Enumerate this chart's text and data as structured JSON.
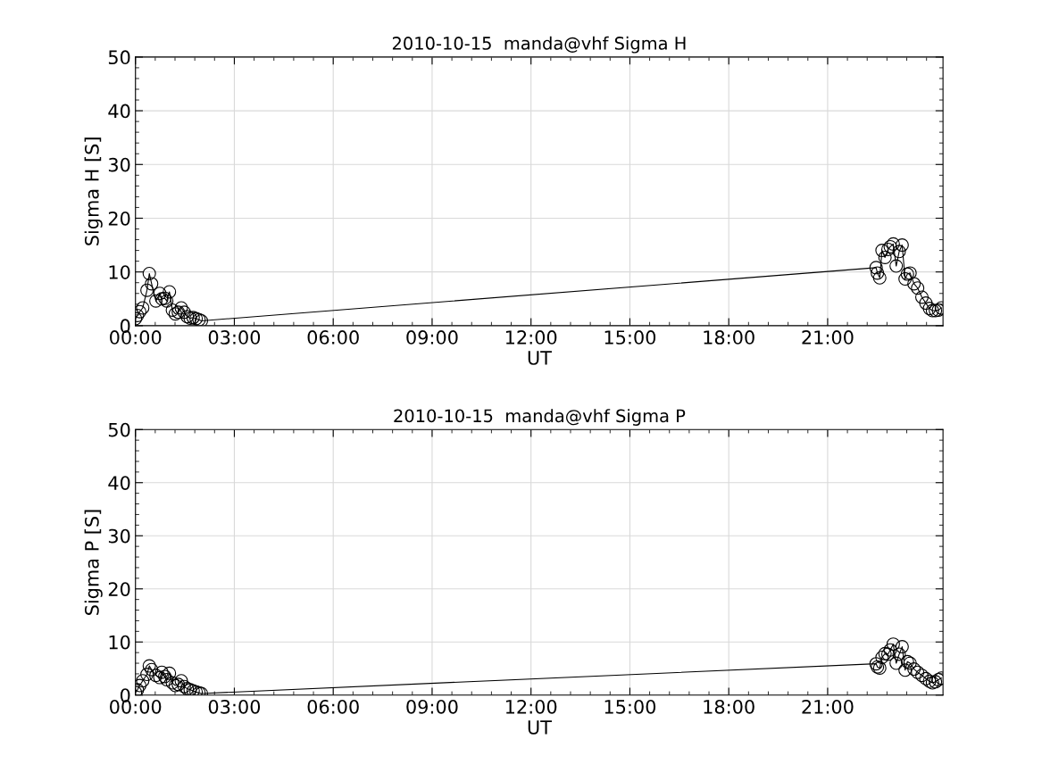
{
  "chart_data": [
    {
      "type": "line",
      "title": "2010-10-15  manda@vhf Sigma H",
      "xlabel": "UT",
      "ylabel": "Sigma H [S]",
      "x": [
        0.0,
        0.06,
        0.13,
        0.22,
        0.35,
        0.42,
        0.49,
        0.62,
        0.74,
        0.8,
        0.89,
        0.95,
        1.03,
        1.12,
        1.21,
        1.3,
        1.39,
        1.48,
        1.57,
        1.66,
        1.75,
        1.84,
        1.93,
        2.0,
        22.47,
        22.51,
        22.58,
        22.65,
        22.74,
        22.83,
        22.9,
        22.99,
        23.08,
        23.17,
        23.26,
        23.35,
        23.42,
        23.5,
        23.62,
        23.73,
        23.86,
        23.98,
        24.09,
        24.18,
        24.27,
        24.36,
        24.45
      ],
      "series": [
        {
          "color": "#000000",
          "values": [
            1.3,
            1.9,
            2.6,
            3.3,
            6.6,
            9.7,
            7.8,
            4.6,
            6.0,
            5.0,
            5.1,
            4.6,
            6.3,
            2.9,
            2.2,
            2.5,
            3.3,
            2.5,
            1.7,
            1.4,
            1.5,
            1.3,
            1.1,
            0.9,
            10.8,
            9.8,
            8.9,
            14.0,
            12.7,
            14.2,
            14.7,
            15.2,
            11.1,
            13.8,
            15.0,
            8.7,
            9.6,
            9.8,
            7.8,
            7.0,
            5.3,
            4.2,
            3.2,
            2.8,
            2.8,
            2.9,
            3.3
          ]
        }
      ],
      "marker": "circle",
      "grid": true,
      "xlim": [
        0,
        24.5
      ],
      "ylim": [
        0,
        50
      ],
      "xticks": [
        {
          "value": 0,
          "label": "00:00"
        },
        {
          "value": 3,
          "label": "03:00"
        },
        {
          "value": 6,
          "label": "06:00"
        },
        {
          "value": 9,
          "label": "09:00"
        },
        {
          "value": 12,
          "label": "12:00"
        },
        {
          "value": 15,
          "label": "15:00"
        },
        {
          "value": 18,
          "label": "18:00"
        },
        {
          "value": 21,
          "label": "21:00"
        }
      ],
      "yticks": [
        0,
        10,
        20,
        30,
        40,
        50
      ]
    },
    {
      "type": "line",
      "title": "2010-10-15  manda@vhf Sigma P",
      "xlabel": "UT",
      "ylabel": "Sigma P [S]",
      "x": [
        0.0,
        0.06,
        0.13,
        0.22,
        0.35,
        0.42,
        0.49,
        0.62,
        0.74,
        0.8,
        0.89,
        0.95,
        1.03,
        1.12,
        1.21,
        1.3,
        1.39,
        1.48,
        1.57,
        1.66,
        1.75,
        1.84,
        1.93,
        2.0,
        22.47,
        22.51,
        22.58,
        22.65,
        22.74,
        22.83,
        22.9,
        22.99,
        23.08,
        23.17,
        23.26,
        23.35,
        23.42,
        23.5,
        23.62,
        23.73,
        23.86,
        23.98,
        24.09,
        24.18,
        24.27,
        24.36,
        24.45
      ],
      "series": [
        {
          "color": "#000000",
          "values": [
            0.5,
            1.0,
            1.8,
            2.7,
            3.9,
            5.5,
            4.8,
            3.7,
            3.3,
            4.3,
            3.5,
            2.9,
            4.1,
            2.3,
            1.8,
            2.0,
            2.7,
            1.6,
            1.2,
            1.0,
            0.8,
            0.6,
            0.4,
            0.3,
            5.9,
            5.3,
            5.1,
            7.1,
            7.8,
            7.7,
            8.5,
            9.6,
            6.0,
            7.7,
            9.1,
            4.7,
            6.3,
            6.0,
            4.9,
            4.3,
            3.7,
            3.1,
            2.6,
            2.3,
            2.5,
            2.9,
            3.2
          ]
        }
      ],
      "marker": "circle",
      "grid": true,
      "xlim": [
        0,
        24.5
      ],
      "ylim": [
        0,
        50
      ],
      "xticks": [
        {
          "value": 0,
          "label": "00:00"
        },
        {
          "value": 3,
          "label": "03:00"
        },
        {
          "value": 6,
          "label": "06:00"
        },
        {
          "value": 9,
          "label": "09:00"
        },
        {
          "value": 12,
          "label": "12:00"
        },
        {
          "value": 15,
          "label": "15:00"
        },
        {
          "value": 18,
          "label": "18:00"
        },
        {
          "value": 21,
          "label": "21:00"
        }
      ],
      "yticks": [
        0,
        10,
        20,
        30,
        40,
        50
      ]
    }
  ]
}
